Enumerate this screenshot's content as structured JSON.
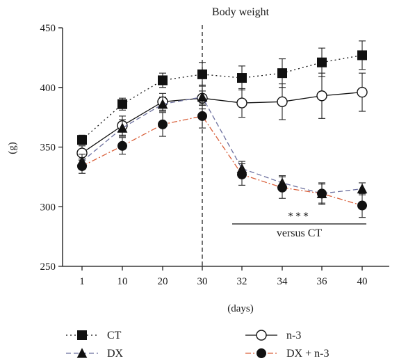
{
  "chart_data": {
    "type": "line",
    "title": "Body weight",
    "xlabel": "(days)",
    "ylabel": "(g)",
    "categories": [
      "1",
      "10",
      "20",
      "30",
      "32",
      "34",
      "36",
      "40"
    ],
    "ylim": [
      250,
      450
    ],
    "yticks": [
      250,
      300,
      350,
      400,
      450
    ],
    "grid": false,
    "legend_position": "bottom",
    "vline_at": "30",
    "series": [
      {
        "name": "CT",
        "line_style": "dotted",
        "color": "#111111",
        "marker": "square-filled",
        "values": [
          356,
          386,
          406,
          411,
          408,
          412,
          421,
          427
        ],
        "errors": [
          4,
          5,
          6,
          10,
          10,
          12,
          12,
          12
        ]
      },
      {
        "name": "n-3",
        "line_style": "solid",
        "color": "#111111",
        "marker": "circle-open",
        "values": [
          345,
          368,
          388,
          391,
          387,
          388,
          393,
          396
        ],
        "errors": [
          6,
          8,
          7,
          6,
          12,
          15,
          19,
          16
        ]
      },
      {
        "name": "DX",
        "line_style": "dashed",
        "color": "#6b6f9e",
        "marker": "triangle-filled",
        "values": [
          338,
          366,
          386,
          392,
          332,
          320,
          311,
          315
        ],
        "errors": [
          6,
          7,
          6,
          10,
          6,
          6,
          8,
          5
        ]
      },
      {
        "name": "DX + n-3",
        "line_style": "dashdot",
        "color": "#d9603b",
        "marker": "circle-filled",
        "values": [
          334,
          351,
          369,
          376,
          327,
          316,
          311,
          301
        ],
        "errors": [
          6,
          7,
          10,
          10,
          9,
          9,
          9,
          10
        ]
      }
    ],
    "annotation": {
      "stars": "***",
      "text": "versus CT",
      "from": "32",
      "to": "40"
    }
  }
}
